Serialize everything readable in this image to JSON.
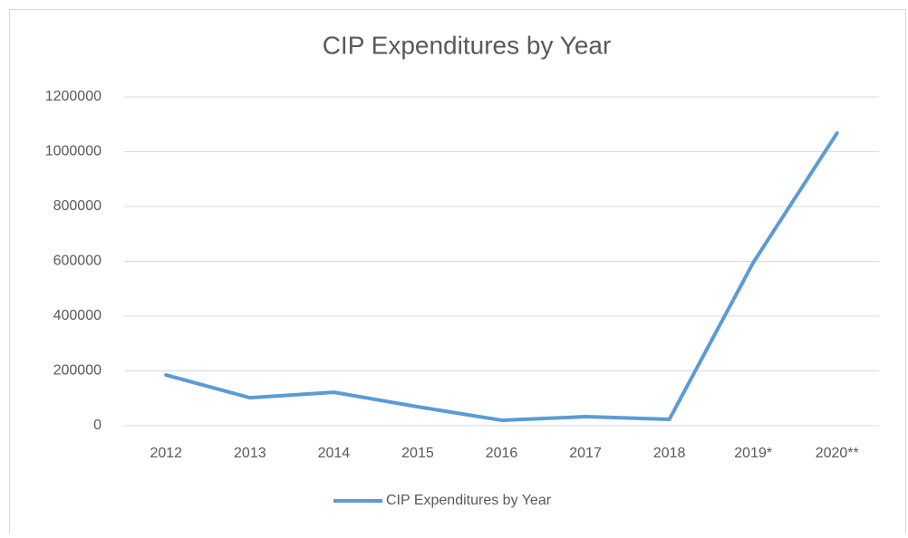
{
  "chart_data": {
    "type": "line",
    "title": "CIP Expenditures by Year",
    "categories": [
      "2012",
      "2013",
      "2014",
      "2015",
      "2016",
      "2017",
      "2018",
      "2019*",
      "2020**"
    ],
    "series": [
      {
        "name": "CIP Expenditures by Year",
        "color": "#5b9bd5",
        "values": [
          185000,
          102000,
          122000,
          69000,
          20000,
          33000,
          23000,
          595000,
          1068000
        ]
      }
    ],
    "ylim": [
      0,
      1200000
    ],
    "yticks": [
      0,
      200000,
      400000,
      600000,
      800000,
      1000000,
      1200000
    ],
    "grid": true,
    "legend": "bottom"
  }
}
